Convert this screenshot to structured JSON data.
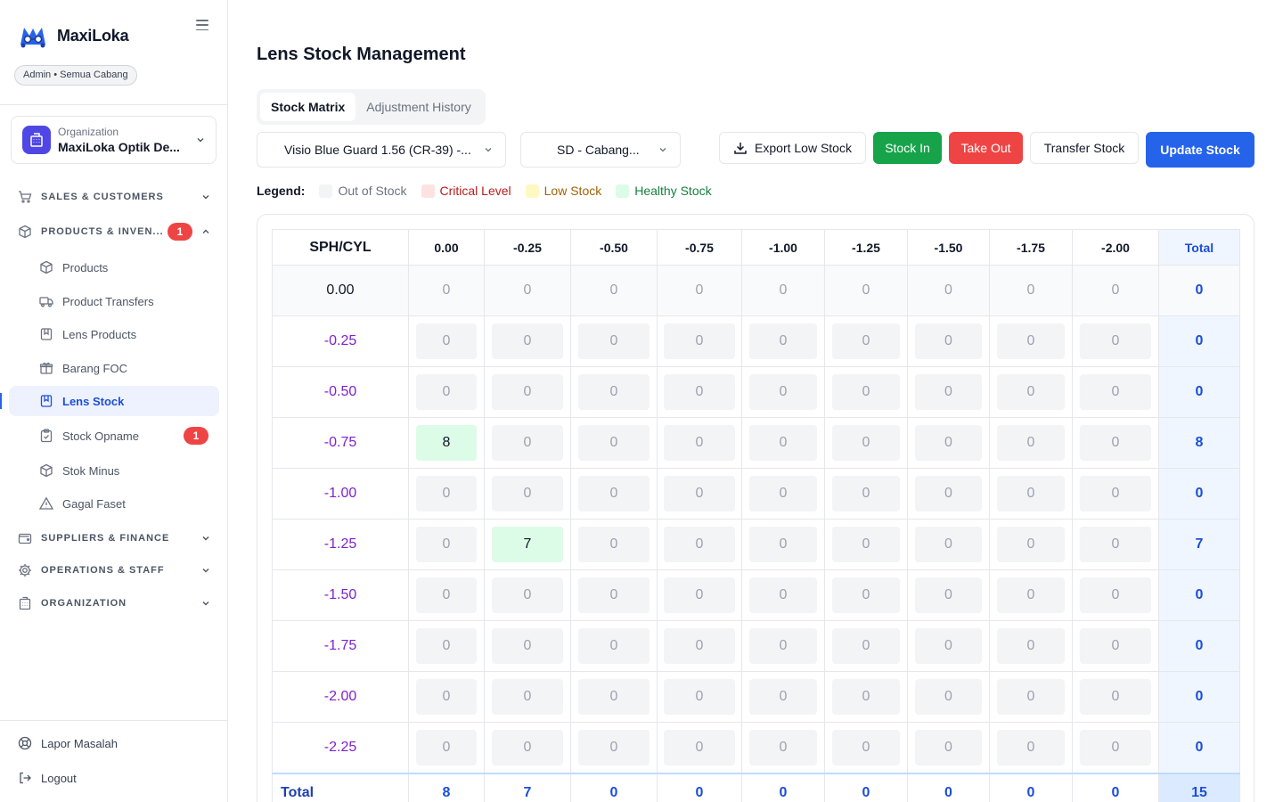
{
  "brand": {
    "name": "MaxiLoka",
    "role": "Admin • Semua Cabang"
  },
  "org": {
    "label": "Organization",
    "name": "MaxiLoka Optik De..."
  },
  "nav": {
    "sections": [
      {
        "label": "SALES & CUSTOMERS",
        "icon": "cart-icon"
      },
      {
        "label": "PRODUCTS & INVEN...",
        "icon": "box-icon",
        "badge": "1"
      },
      {
        "label": "SUPPLIERS & FINANCE",
        "icon": "wallet-icon"
      },
      {
        "label": "OPERATIONS & STAFF",
        "icon": "gear-icon"
      },
      {
        "label": "ORGANIZATION",
        "icon": "building-icon"
      }
    ],
    "items": [
      {
        "label": "Products",
        "icon": "package-icon"
      },
      {
        "label": "Product Transfers",
        "icon": "truck-icon"
      },
      {
        "label": "Lens Products",
        "icon": "bookmark-icon"
      },
      {
        "label": "Barang FOC",
        "icon": "gift-icon"
      },
      {
        "label": "Lens Stock",
        "icon": "bookmark-icon",
        "active": true
      },
      {
        "label": "Stock Opname",
        "icon": "clipboard-icon",
        "badge": "1"
      },
      {
        "label": "Stok Minus",
        "icon": "package-icon"
      },
      {
        "label": "Gagal Faset",
        "icon": "warning-icon"
      }
    ],
    "footer": [
      {
        "label": "Lapor Masalah",
        "icon": "help-circle-icon"
      },
      {
        "label": "Logout",
        "icon": "logout-icon"
      }
    ]
  },
  "page": {
    "title": "Lens Stock Management",
    "tabs": [
      {
        "label": "Stock Matrix",
        "active": true
      },
      {
        "label": "Adjustment History"
      }
    ],
    "filters": {
      "product": "Visio Blue Guard 1.56 (CR-39)  -...",
      "branch": "SD - Cabang..."
    },
    "actions": {
      "export": "Export Low Stock",
      "stock_in": "Stock In",
      "take_out": "Take Out",
      "transfer": "Transfer Stock",
      "update": "Update Stock"
    },
    "legend": {
      "title": "Legend:",
      "items": [
        {
          "label": "Out of Stock",
          "color": "#f3f4f6",
          "text_color": "#6b7280"
        },
        {
          "label": "Critical Level",
          "color": "#fee2e2",
          "text_color": "#b91c1c"
        },
        {
          "label": "Low Stock",
          "color": "#fef9c3",
          "text_color": "#a16207"
        },
        {
          "label": "Healthy Stock",
          "color": "#dcfce7",
          "text_color": "#15803d"
        }
      ]
    }
  },
  "matrix": {
    "corner": "SPH/CYL",
    "cyl": [
      "0.00",
      "-0.25",
      "-0.50",
      "-0.75",
      "-1.00",
      "-1.25",
      "-1.50",
      "-1.75",
      "-2.00"
    ],
    "total_label": "Total",
    "rows": [
      {
        "sph": "0.00",
        "values": [
          0,
          0,
          0,
          0,
          0,
          0,
          0,
          0,
          0
        ],
        "total": 0
      },
      {
        "sph": "-0.25",
        "values": [
          0,
          0,
          0,
          0,
          0,
          0,
          0,
          0,
          0
        ],
        "total": 0
      },
      {
        "sph": "-0.50",
        "values": [
          0,
          0,
          0,
          0,
          0,
          0,
          0,
          0,
          0
        ],
        "total": 0
      },
      {
        "sph": "-0.75",
        "values": [
          8,
          0,
          0,
          0,
          0,
          0,
          0,
          0,
          0
        ],
        "total": 8
      },
      {
        "sph": "-1.00",
        "values": [
          0,
          0,
          0,
          0,
          0,
          0,
          0,
          0,
          0
        ],
        "total": 0
      },
      {
        "sph": "-1.25",
        "values": [
          0,
          7,
          0,
          0,
          0,
          0,
          0,
          0,
          0
        ],
        "total": 7
      },
      {
        "sph": "-1.50",
        "values": [
          0,
          0,
          0,
          0,
          0,
          0,
          0,
          0,
          0
        ],
        "total": 0
      },
      {
        "sph": "-1.75",
        "values": [
          0,
          0,
          0,
          0,
          0,
          0,
          0,
          0,
          0
        ],
        "total": 0
      },
      {
        "sph": "-2.00",
        "values": [
          0,
          0,
          0,
          0,
          0,
          0,
          0,
          0,
          0
        ],
        "total": 0
      },
      {
        "sph": "-2.25",
        "values": [
          0,
          0,
          0,
          0,
          0,
          0,
          0,
          0,
          0
        ],
        "total": 0
      }
    ],
    "column_totals": [
      8,
      7,
      0,
      0,
      0,
      0,
      0,
      0,
      0
    ],
    "grand_total": 15
  }
}
